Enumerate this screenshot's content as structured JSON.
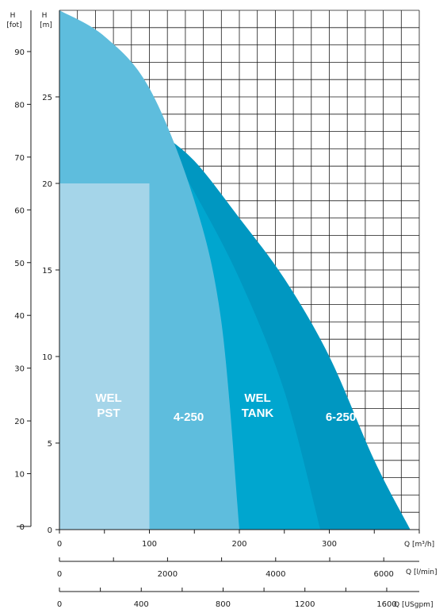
{
  "chart_data": {
    "type": "area",
    "title": "",
    "x_axes": [
      {
        "label": "Q [m³/h]",
        "ticks": [
          0,
          100,
          200,
          300
        ],
        "range": [
          0,
          400
        ]
      },
      {
        "label": "Q [l/min]",
        "ticks": [
          0,
          2000,
          4000,
          6000
        ]
      },
      {
        "label": "Q [USgpm]",
        "ticks": [
          0,
          400,
          800,
          1200,
          1600
        ]
      }
    ],
    "y_axes": [
      {
        "label_top": "H",
        "label_bottom": "[m]",
        "ticks": [
          0,
          5,
          10,
          15,
          20,
          25
        ],
        "range": [
          0,
          30
        ]
      },
      {
        "label_top": "H",
        "label_bottom": "[fot]",
        "ticks": [
          0,
          10,
          20,
          30,
          40,
          50,
          60,
          70,
          80,
          90
        ]
      }
    ],
    "grid": true,
    "series": [
      {
        "name": "WEL PST",
        "color": "#a5d5e9",
        "points": [
          [
            0,
            0
          ],
          [
            0,
            20
          ],
          [
            100,
            20
          ],
          [
            100,
            0
          ]
        ]
      },
      {
        "name": "4-250",
        "color": "#5ebddd",
        "points": [
          [
            0,
            30
          ],
          [
            50,
            28.5
          ],
          [
            100,
            25.5
          ],
          [
            150,
            19
          ],
          [
            180,
            12
          ],
          [
            200,
            0
          ]
        ]
      },
      {
        "name": "WEL TANK",
        "color": "#00a6cf",
        "points": [
          [
            110,
            23
          ],
          [
            150,
            19.5
          ],
          [
            200,
            14.5
          ],
          [
            250,
            8
          ],
          [
            290,
            0
          ]
        ]
      },
      {
        "name": "6-250",
        "color": "#0097c1",
        "points": [
          [
            110,
            23
          ],
          [
            150,
            21.3
          ],
          [
            200,
            18
          ],
          [
            250,
            14.5
          ],
          [
            300,
            10
          ],
          [
            350,
            4
          ],
          [
            390,
            0
          ]
        ]
      }
    ]
  }
}
